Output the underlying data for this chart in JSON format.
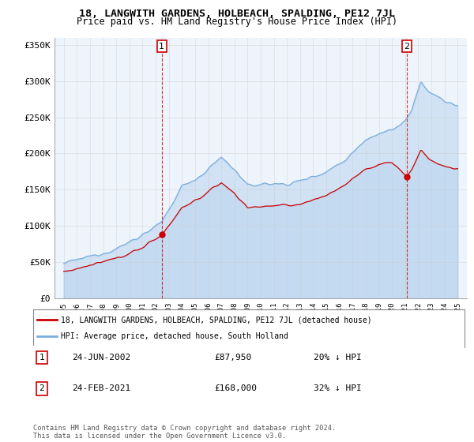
{
  "title": "18, LANGWITH GARDENS, HOLBEACH, SPALDING, PE12 7JL",
  "subtitle": "Price paid vs. HM Land Registry's House Price Index (HPI)",
  "ylabel_ticks": [
    "£0",
    "£50K",
    "£100K",
    "£150K",
    "£200K",
    "£250K",
    "£300K",
    "£350K"
  ],
  "ytick_values": [
    0,
    50000,
    100000,
    150000,
    200000,
    250000,
    300000,
    350000
  ],
  "ylim": [
    0,
    360000
  ],
  "legend_property_label": "18, LANGWITH GARDENS, HOLBEACH, SPALDING, PE12 7JL (detached house)",
  "legend_hpi_label": "HPI: Average price, detached house, South Holland",
  "transaction1": {
    "label": "1",
    "date": "24-JUN-2002",
    "price": "£87,950",
    "hpi_diff": "20% ↓ HPI",
    "year": 2002.47
  },
  "transaction2": {
    "label": "2",
    "date": "24-FEB-2021",
    "price": "£168,000",
    "hpi_diff": "32% ↓ HPI",
    "year": 2021.12
  },
  "footnote": "Contains HM Land Registry data © Crown copyright and database right 2024.\nThis data is licensed under the Open Government Licence v3.0.",
  "property_color": "#cc0000",
  "hpi_color": "#7aade0",
  "fill_color": "#ddeeff",
  "background_color": "#ffffff",
  "plot_bg_color": "#eef4fb",
  "grid_color": "#cccccc"
}
